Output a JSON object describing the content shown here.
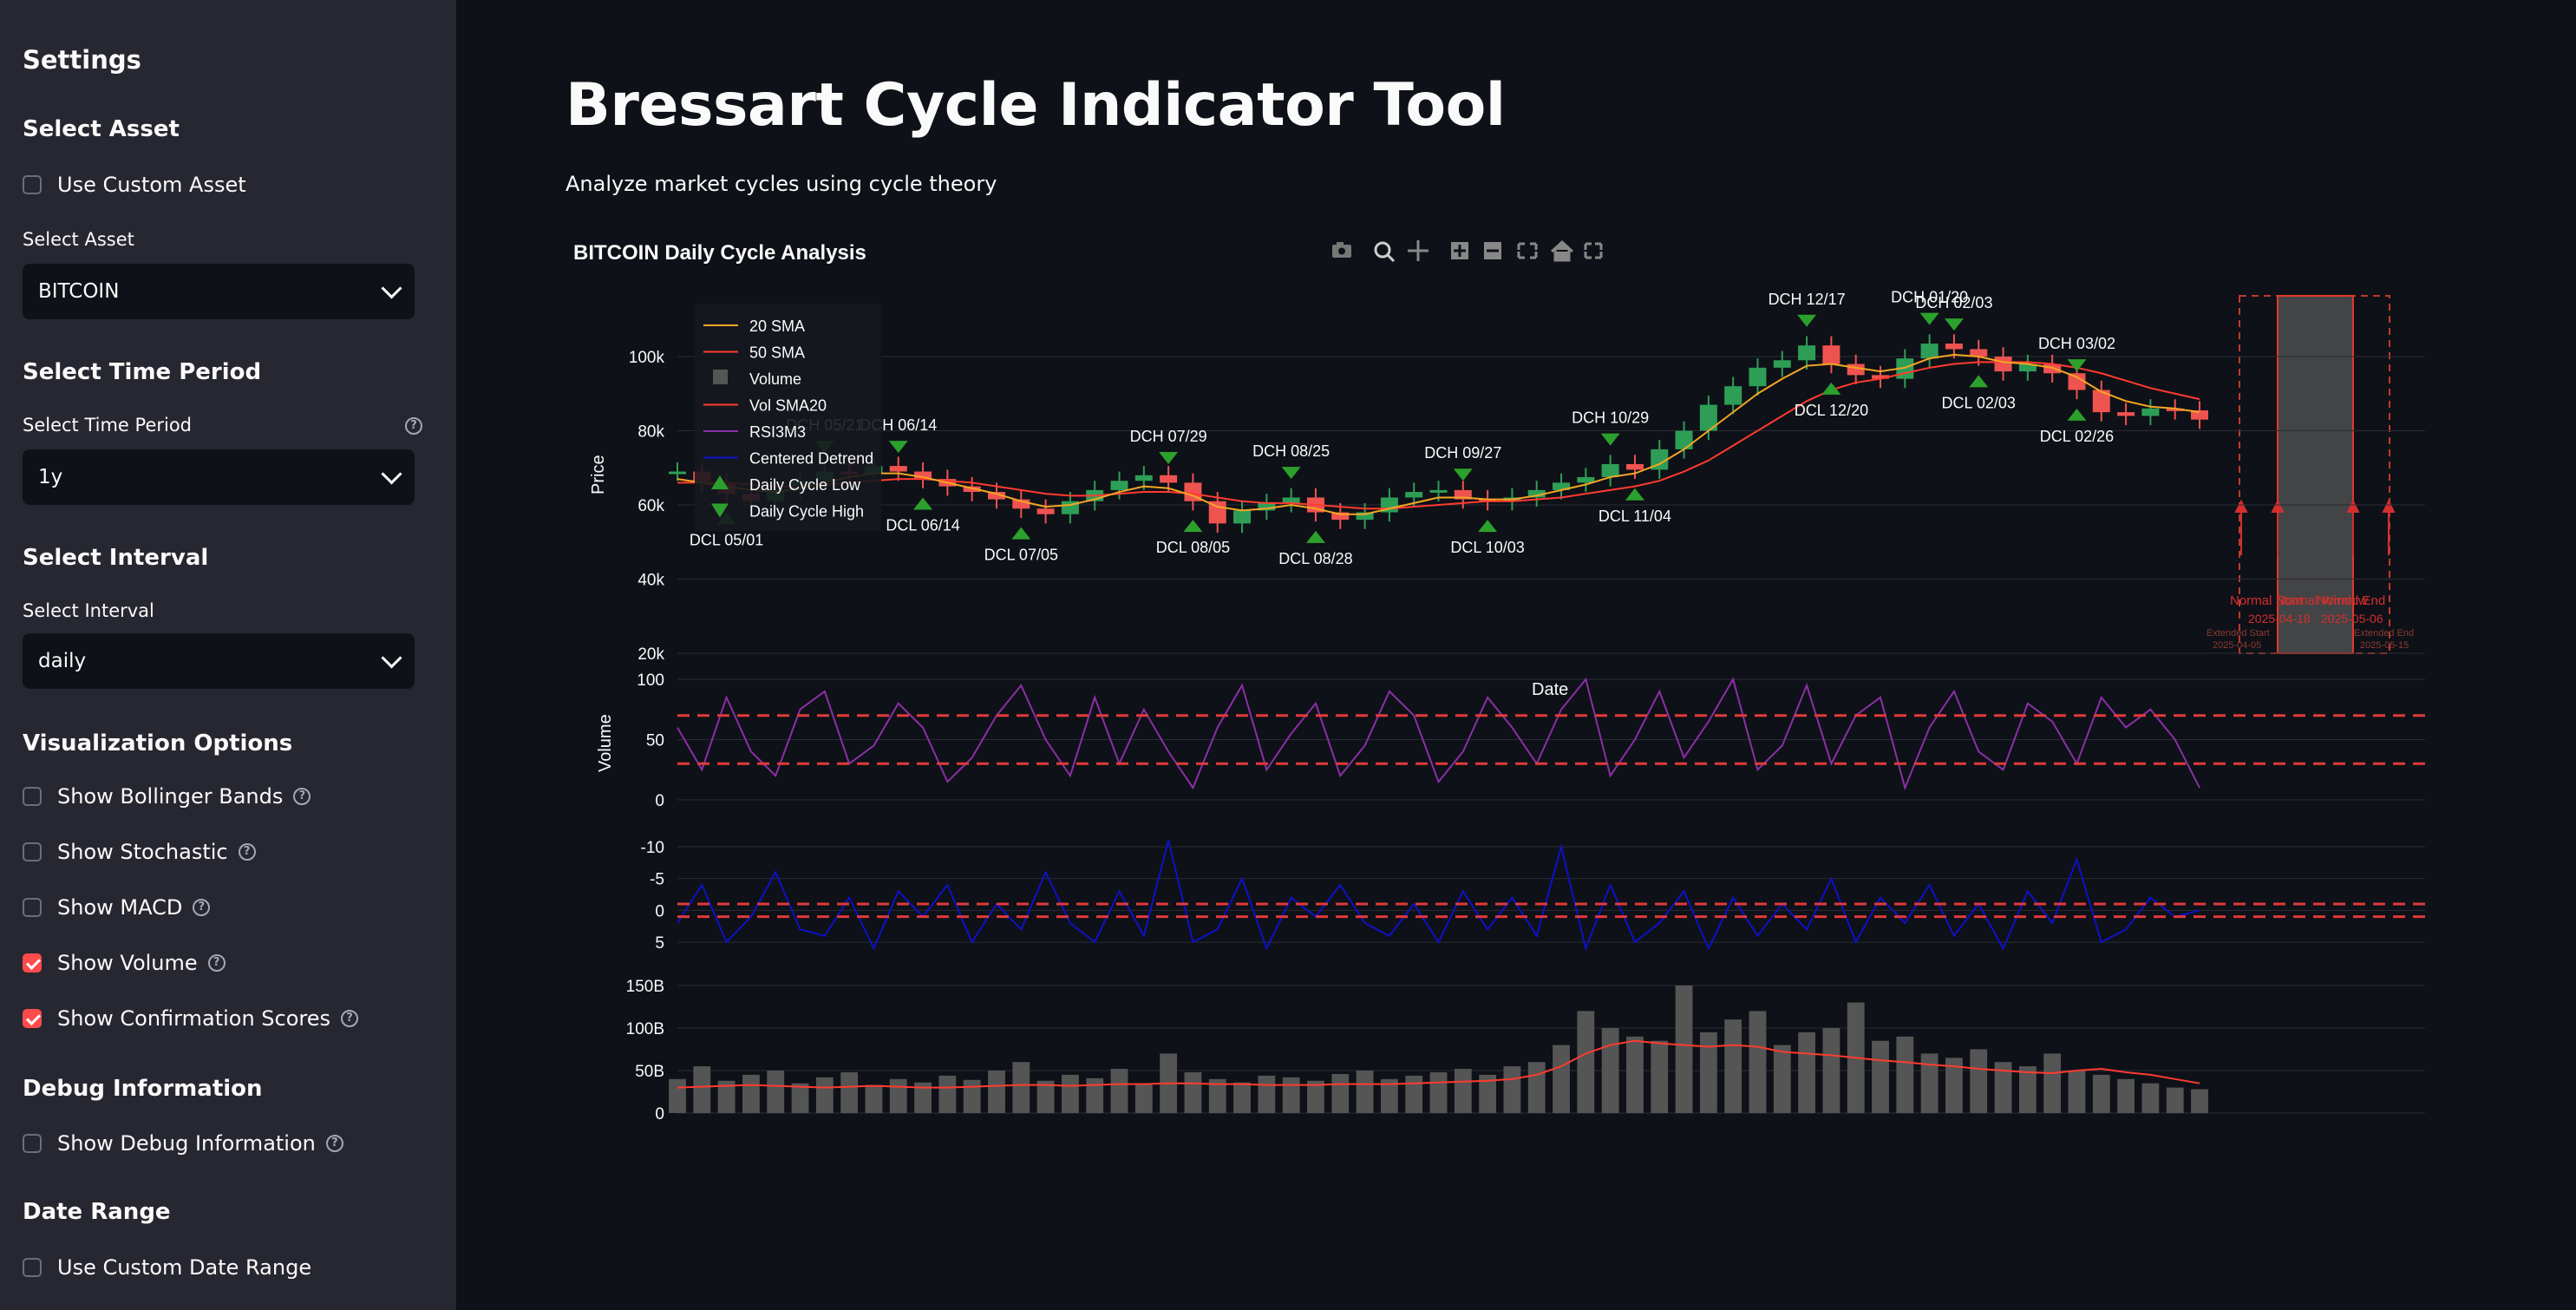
{
  "sidebar": {
    "settings_title": "Settings",
    "asset_section": "Select Asset",
    "use_custom_asset": "Use Custom Asset",
    "asset_label": "Select Asset",
    "asset_value": "BITCOIN",
    "time_section": "Select Time Period",
    "time_label": "Select Time Period",
    "time_value": "1y",
    "interval_section": "Select Interval",
    "interval_label": "Select Interval",
    "interval_value": "daily",
    "viz_section": "Visualization Options",
    "options": [
      {
        "label": "Show Bollinger Bands",
        "checked": false
      },
      {
        "label": "Show Stochastic",
        "checked": false
      },
      {
        "label": "Show MACD",
        "checked": false
      },
      {
        "label": "Show Volume",
        "checked": true
      },
      {
        "label": "Show Confirmation Scores",
        "checked": true
      }
    ],
    "debug_section": "Debug Information",
    "show_debug": "Show Debug Information",
    "date_section": "Date Range",
    "use_custom_date": "Use Custom Date Range"
  },
  "main": {
    "title": "Bressart Cycle Indicator Tool",
    "subtitle": "Analyze market cycles using cycle theory",
    "chart_title": "BITCOIN Daily Cycle Analysis"
  },
  "colors": {
    "accent": "#ff4b4b",
    "sma20": "#f5a623",
    "sma50": "#ff3b30",
    "rsi": "#8b2fa6",
    "detrend": "#1010c8",
    "cycle_marker": "#2ca02c",
    "volume_bar": "#555555"
  },
  "chart_data": {
    "type": "line",
    "title": "BITCOIN Daily Cycle Analysis",
    "xlabel": "Date",
    "legend": [
      "20 SMA",
      "50 SMA",
      "Volume",
      "Vol SMA20",
      "RSI3M3",
      "Centered Detrend",
      "Daily Cycle Low",
      "Daily Cycle High"
    ],
    "legend_position": "top-left",
    "price_panel": {
      "ylabel": "Price",
      "yticks": [
        "100k",
        "80k",
        "60k",
        "40k",
        "20k"
      ],
      "ylim": [
        20000,
        110000
      ],
      "series": {
        "close": [
          69000,
          66000,
          63000,
          61000,
          64000,
          66500,
          69000,
          68500,
          70500,
          69000,
          67000,
          65000,
          63500,
          61500,
          59000,
          57500,
          61000,
          64000,
          66500,
          68000,
          66000,
          61000,
          55000,
          58500,
          60500,
          62000,
          58000,
          56000,
          58000,
          62000,
          63500,
          64000,
          61500,
          61000,
          62000,
          64000,
          66000,
          67500,
          71000,
          69500,
          75000,
          80000,
          87000,
          92000,
          97000,
          99000,
          103000,
          98000,
          95000,
          94000,
          99500,
          103500,
          102000,
          100000,
          96000,
          98000,
          95500,
          91000,
          85000,
          84000,
          86000,
          85500,
          83000
        ],
        "sma20": [
          67000,
          66000,
          65000,
          64000,
          63500,
          64500,
          66000,
          67500,
          68500,
          68500,
          67500,
          66000,
          64500,
          63000,
          61000,
          59500,
          60000,
          61500,
          63500,
          65000,
          64500,
          62500,
          59500,
          58500,
          59000,
          60000,
          59000,
          57500,
          57500,
          59000,
          60500,
          62000,
          62000,
          61500,
          61500,
          62500,
          64000,
          65500,
          67500,
          68500,
          71000,
          75000,
          80000,
          85000,
          90000,
          94000,
          97500,
          98000,
          97000,
          96000,
          97000,
          99500,
          100500,
          100000,
          98500,
          98000,
          97000,
          94500,
          90500,
          88000,
          86500,
          86000,
          85000
        ],
        "sma50": [
          66000,
          66000,
          66000,
          65500,
          65000,
          65000,
          65500,
          66000,
          66500,
          67000,
          67000,
          66500,
          66000,
          65000,
          64000,
          63000,
          62500,
          62500,
          63000,
          63500,
          63500,
          63000,
          62000,
          61000,
          60500,
          60500,
          60000,
          59500,
          59000,
          59000,
          59500,
          60000,
          60500,
          61000,
          61000,
          61500,
          62000,
          63000,
          64000,
          65000,
          66500,
          69000,
          72000,
          76000,
          80000,
          84000,
          88000,
          91000,
          93000,
          94000,
          95500,
          97000,
          98000,
          98500,
          98500,
          98500,
          98000,
          97000,
          95500,
          93500,
          91500,
          90000,
          88500
        ]
      },
      "cycle_labels": [
        {
          "text": "DCH 05/21",
          "kind": "high"
        },
        {
          "text": "DCL 05/01",
          "kind": "low"
        },
        {
          "text": "DCH 06/14",
          "kind": "high"
        },
        {
          "text": "DCL 06/14",
          "kind": "low"
        },
        {
          "text": "DCL 07/05",
          "kind": "low"
        },
        {
          "text": "DCH 07/29",
          "kind": "high"
        },
        {
          "text": "DCL 08/05",
          "kind": "low"
        },
        {
          "text": "DCH 08/25",
          "kind": "high"
        },
        {
          "text": "DCL 08/28",
          "kind": "low"
        },
        {
          "text": "DCH 09/27",
          "kind": "high"
        },
        {
          "text": "DCL 10/03",
          "kind": "low"
        },
        {
          "text": "DCH 10/29",
          "kind": "high"
        },
        {
          "text": "DCL 11/04",
          "kind": "low"
        },
        {
          "text": "DCH 12/17",
          "kind": "high"
        },
        {
          "text": "DCL 12/20",
          "kind": "low"
        },
        {
          "text": "DCH 01/20",
          "kind": "high"
        },
        {
          "text": "DCH 02/03",
          "kind": "high"
        },
        {
          "text": "DCL 02/03",
          "kind": "low"
        },
        {
          "text": "DCH 03/02",
          "kind": "high"
        },
        {
          "text": "DCL 02/26",
          "kind": "low"
        }
      ],
      "projection": {
        "normal_window": "Normal Window",
        "normal_start": "Normal Start",
        "normal_end": "Normal End",
        "start_date": "2025-04-18",
        "end_date": "2025-05-06",
        "extended_start": "Extended Start",
        "extended_start_date": "2025-04-05",
        "extended_end": "Extended End",
        "extended_end_date": "2025-05-15"
      }
    },
    "rsi_panel": {
      "ylabel": "Volume",
      "yticks": [
        "100",
        "50",
        "0"
      ],
      "ylim": [
        0,
        100
      ],
      "upper_line": 70,
      "lower_line": 30,
      "values": [
        60,
        25,
        85,
        40,
        20,
        75,
        90,
        30,
        45,
        80,
        60,
        15,
        35,
        70,
        95,
        50,
        20,
        85,
        30,
        75,
        40,
        10,
        60,
        95,
        25,
        55,
        80,
        20,
        45,
        90,
        70,
        15,
        40,
        85,
        60,
        30,
        75,
        100,
        20,
        50,
        90,
        35,
        65,
        100,
        25,
        45,
        95,
        30,
        70,
        85,
        10,
        60,
        90,
        40,
        25,
        80,
        65,
        30,
        85,
        60,
        75,
        50,
        10
      ]
    },
    "detrend_panel": {
      "yticks": [
        "5",
        "0",
        "-5",
        "-10"
      ],
      "ylim": [
        -12,
        7
      ],
      "upper_line": 1,
      "lower_line": -1,
      "values": [
        2,
        -4,
        5,
        1,
        -6,
        3,
        4,
        -2,
        6,
        -3,
        1,
        -4,
        5,
        -1,
        3,
        -6,
        2,
        5,
        -3,
        4,
        -11,
        5,
        3,
        -5,
        6,
        -2,
        1,
        -4,
        2,
        4,
        -1,
        5,
        -3,
        3,
        -2,
        4,
        -10,
        6,
        -4,
        5,
        2,
        -3,
        6,
        -2,
        4,
        -1,
        3,
        -5,
        5,
        -2,
        2,
        -4,
        4,
        -1,
        6,
        -3,
        2,
        -8,
        5,
        3,
        -2,
        1,
        0
      ]
    },
    "volume_panel": {
      "yticks": [
        "150B",
        "100B",
        "50B",
        "0"
      ],
      "ylim": [
        0,
        150
      ],
      "values": [
        40,
        55,
        38,
        45,
        50,
        35,
        42,
        48,
        33,
        40,
        36,
        44,
        39,
        50,
        60,
        38,
        45,
        41,
        52,
        35,
        70,
        48,
        40,
        36,
        44,
        42,
        38,
        46,
        50,
        40,
        44,
        48,
        52,
        45,
        55,
        60,
        80,
        120,
        100,
        90,
        85,
        150,
        95,
        110,
        120,
        80,
        95,
        100,
        130,
        85,
        90,
        70,
        65,
        75,
        60,
        55,
        70,
        50,
        45,
        40,
        35,
        30,
        28
      ],
      "vol_sma20": [
        30,
        31,
        32,
        33,
        32,
        31,
        30,
        31,
        32,
        31,
        30,
        30,
        31,
        32,
        33,
        33,
        32,
        33,
        34,
        34,
        35,
        35,
        34,
        34,
        33,
        33,
        33,
        34,
        34,
        34,
        35,
        36,
        37,
        38,
        40,
        45,
        55,
        70,
        80,
        85,
        82,
        80,
        78,
        80,
        78,
        72,
        70,
        68,
        65,
        62,
        60,
        57,
        55,
        52,
        50,
        48,
        47,
        50,
        52,
        48,
        45,
        40,
        35
      ]
    }
  }
}
